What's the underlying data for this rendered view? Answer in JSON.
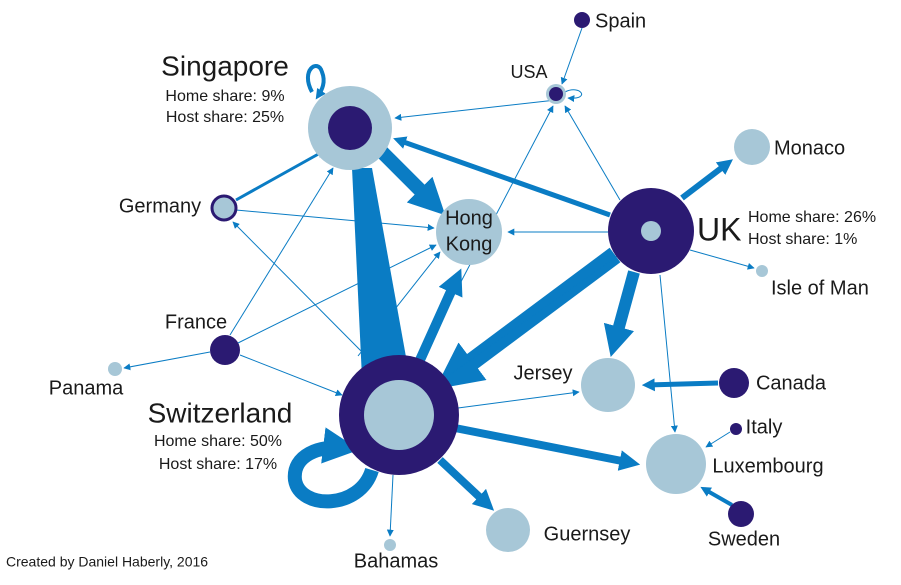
{
  "nodes": [
    {
      "label": "Singapore",
      "home_share": "Home share: 9%",
      "host_share": "Host share: 25%"
    },
    {
      "label": "USA"
    },
    {
      "label": "Spain"
    },
    {
      "label": "Monaco"
    },
    {
      "label": "UK",
      "home_share": "Home share: 26%",
      "host_share": "Host share: 1%"
    },
    {
      "label": "Isle of Man"
    },
    {
      "label": [
        "Hong",
        "Kong"
      ]
    },
    {
      "label": "Germany"
    },
    {
      "label": "France"
    },
    {
      "label": "Panama"
    },
    {
      "label": "Switzerland",
      "home_share": "Home share: 50%",
      "host_share": "Host share: 17%"
    },
    {
      "label": "Jersey"
    },
    {
      "label": "Canada"
    },
    {
      "label": "Italy"
    },
    {
      "label": "Luxembourg"
    },
    {
      "label": "Sweden"
    },
    {
      "label": "Guernsey"
    },
    {
      "label": "Bahamas"
    }
  ],
  "credit": "Created by Daniel Haberly, 2016"
}
